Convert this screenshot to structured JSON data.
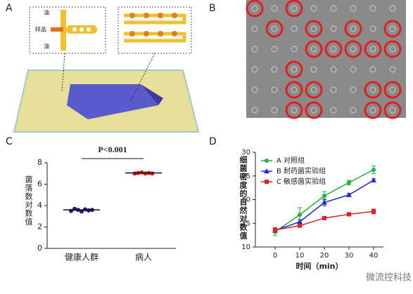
{
  "figure": {
    "panels": [
      "A",
      "B",
      "C",
      "D"
    ],
    "diagram_labels": [
      "油",
      "样品",
      "油"
    ],
    "watermark": "微流控科技"
  },
  "chart_data": [
    {
      "type": "dot",
      "ylabel": "菌落数对数值",
      "annotation": "P<0.001",
      "categories": [
        "健康人群",
        "病人"
      ],
      "values": [
        [
          3.5,
          3.7,
          3.6,
          3.45,
          3.65,
          3.55,
          3.6
        ],
        [
          7.0,
          7.05,
          7.1,
          7.0,
          7.05,
          7.0
        ]
      ],
      "means": [
        3.6,
        7.05
      ],
      "colors": [
        "#1a1a8c",
        "#d42020"
      ],
      "ylim": [
        0,
        8
      ],
      "yticks": [
        0,
        2,
        4,
        6,
        8
      ]
    },
    {
      "type": "line",
      "xlabel": "时间（min）",
      "ylabel": "细菌密度的自然对数值",
      "x": [
        0,
        10,
        20,
        30,
        40
      ],
      "xlim": [
        -8,
        44
      ],
      "xticks": [
        0,
        10,
        20,
        30,
        40
      ],
      "ylim": [
        10,
        30
      ],
      "yticks": [
        10,
        15,
        20,
        25,
        30
      ],
      "legend": "upper left",
      "series": [
        {
          "name": "A  对照组",
          "color": "#22b33a",
          "marker": "circle",
          "values": [
            13.2,
            16.8,
            20.8,
            23.6,
            26.3
          ],
          "errors": [
            0.8,
            1.5,
            0.9,
            0.5,
            0.8
          ]
        },
        {
          "name": "B  耐药菌实验组",
          "color": "#1a2ad0",
          "marker": "triangle",
          "values": [
            13.5,
            15.3,
            19.4,
            21.0,
            24.1
          ],
          "errors": [
            0.4,
            0.5,
            0.7,
            0.3,
            0.3
          ]
        },
        {
          "name": "C  敏感菌实验组",
          "color": "#e02020",
          "marker": "square",
          "values": [
            13.6,
            14.5,
            16.1,
            16.9,
            17.5
          ],
          "errors": [
            0.5,
            0.3,
            0.2,
            0.2,
            0.5
          ]
        }
      ]
    }
  ]
}
